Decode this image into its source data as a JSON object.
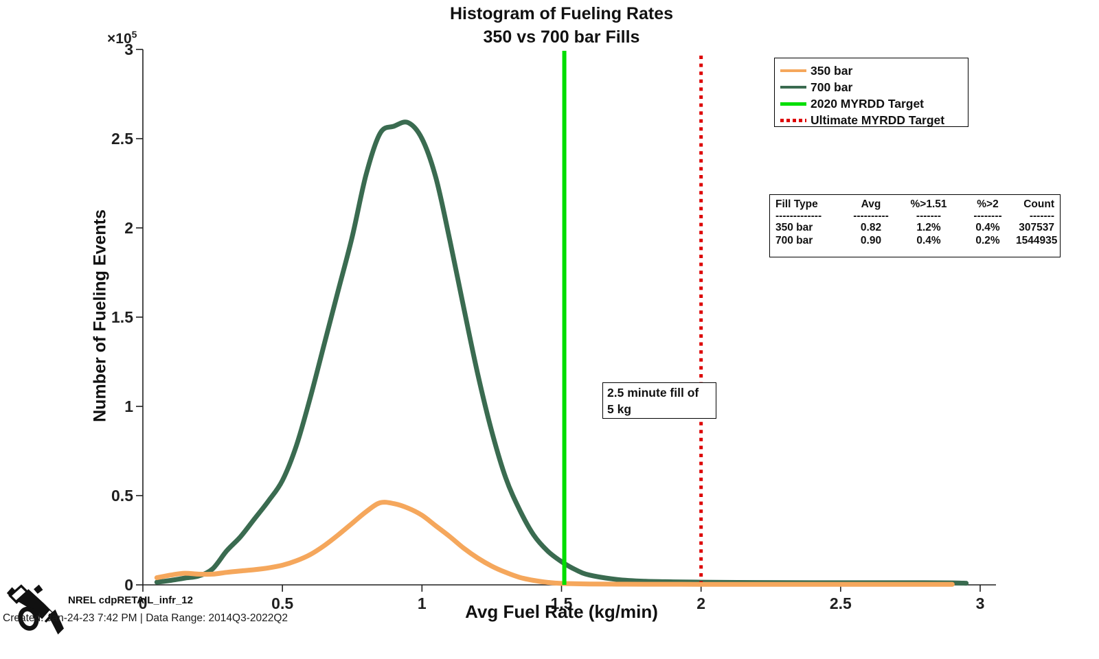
{
  "title": {
    "line1": "Histogram of Fueling Rates",
    "line2": "350 vs 700 bar Fills"
  },
  "y_axis_exponent": {
    "base": "×10",
    "power": "5"
  },
  "chart_data": {
    "type": "line",
    "title": "Histogram of Fueling Rates",
    "subtitle": "350 vs 700 bar Fills",
    "xlabel": "Avg Fuel Rate (kg/min)",
    "ylabel": "Number of Fueling Events",
    "y_scale_note": "×10^5",
    "xlim": [
      0,
      3.05
    ],
    "ylim": [
      0,
      300000
    ],
    "grid": false,
    "legend_position": "top-right",
    "xticks": [
      0,
      0.5,
      1,
      1.5,
      2,
      2.5,
      3
    ],
    "xtick_labels": [
      "0",
      "0.5",
      "1",
      "1.5",
      "2",
      "2.5",
      "3"
    ],
    "yticks": [
      0,
      50000,
      100000,
      150000,
      200000,
      250000,
      300000
    ],
    "ytick_labels": [
      "0",
      "0.5",
      "1",
      "1.5",
      "2",
      "2.5",
      "3"
    ],
    "series": [
      {
        "name": "700 bar",
        "color": "#3A6B50",
        "width": 7,
        "x": [
          0.05,
          0.1,
          0.15,
          0.2,
          0.25,
          0.3,
          0.35,
          0.4,
          0.45,
          0.5,
          0.55,
          0.6,
          0.65,
          0.7,
          0.75,
          0.8,
          0.85,
          0.9,
          0.95,
          1.0,
          1.05,
          1.1,
          1.15,
          1.2,
          1.25,
          1.3,
          1.35,
          1.4,
          1.45,
          1.5,
          1.55,
          1.6,
          1.7,
          1.8,
          1.9,
          2.0,
          2.2,
          2.4,
          2.6,
          2.8,
          2.9,
          2.95
        ],
        "y": [
          1500,
          2500,
          3800,
          5000,
          9000,
          19000,
          27000,
          37000,
          47000,
          58500,
          78000,
          105000,
          135000,
          165000,
          195000,
          230000,
          253000,
          257000,
          259000,
          250000,
          228000,
          193000,
          155000,
          118000,
          86000,
          60000,
          42000,
          28000,
          19000,
          13000,
          8500,
          5500,
          3000,
          2000,
          1700,
          1500,
          1300,
          1200,
          1200,
          1200,
          1100,
          900
        ]
      },
      {
        "name": "350 bar",
        "color": "#F5A75C",
        "width": 7,
        "x": [
          0.05,
          0.1,
          0.15,
          0.2,
          0.25,
          0.3,
          0.35,
          0.4,
          0.45,
          0.5,
          0.55,
          0.6,
          0.65,
          0.7,
          0.75,
          0.8,
          0.85,
          0.9,
          0.95,
          1.0,
          1.05,
          1.1,
          1.15,
          1.2,
          1.25,
          1.3,
          1.35,
          1.4,
          1.45,
          1.5,
          1.6,
          1.7,
          1.8,
          2.0,
          2.2,
          2.5,
          2.7,
          2.9
        ],
        "y": [
          4000,
          5500,
          6500,
          6000,
          6000,
          7000,
          7800,
          8500,
          9500,
          11000,
          13500,
          17000,
          22000,
          28000,
          34500,
          41000,
          46000,
          45500,
          43000,
          39000,
          33000,
          27000,
          20500,
          15000,
          10500,
          7000,
          4200,
          2500,
          1400,
          800,
          500,
          400,
          350,
          300,
          300,
          300,
          300,
          300
        ]
      }
    ],
    "vlines": [
      {
        "label": "2020 MYRDD Target",
        "x": 1.51,
        "color": "#00DE00",
        "style": "solid",
        "width": 6
      },
      {
        "label": "Ultimate MYRDD Target",
        "x": 2.0,
        "color": "#DD0000",
        "style": "dotted",
        "width": 5
      }
    ]
  },
  "legend": {
    "items": [
      {
        "label": "350 bar",
        "color": "#F5A75C",
        "style": "solid",
        "thickness": 4
      },
      {
        "label": "700 bar",
        "color": "#3A6B50",
        "style": "solid",
        "thickness": 4
      },
      {
        "label": "2020 MYRDD Target",
        "color": "#00DE00",
        "style": "solid",
        "thickness": 5
      },
      {
        "label": "Ultimate MYRDD Target",
        "color": "#DD0000",
        "style": "dotted",
        "thickness": 5
      }
    ]
  },
  "stats_table": {
    "headers": [
      "Fill Type",
      "Avg",
      "%>1.51",
      "%>2",
      "Count"
    ],
    "dashes": [
      "-------------",
      "----------",
      "-------",
      "--------",
      "-------"
    ],
    "rows": [
      [
        "350 bar",
        "0.82",
        "1.2%",
        "0.4%",
        "307537"
      ],
      [
        "700 bar",
        "0.90",
        "0.4%",
        "0.2%",
        "1544935"
      ]
    ]
  },
  "annotation": {
    "line1": "2.5 minute fill of",
    "line2": "5 kg"
  },
  "footer": {
    "brand": "NREL cdpRETAIL_infr_12",
    "created": "Created: Jan-24-23  7:42 PM | Data Range: 2014Q3-2022Q2"
  }
}
